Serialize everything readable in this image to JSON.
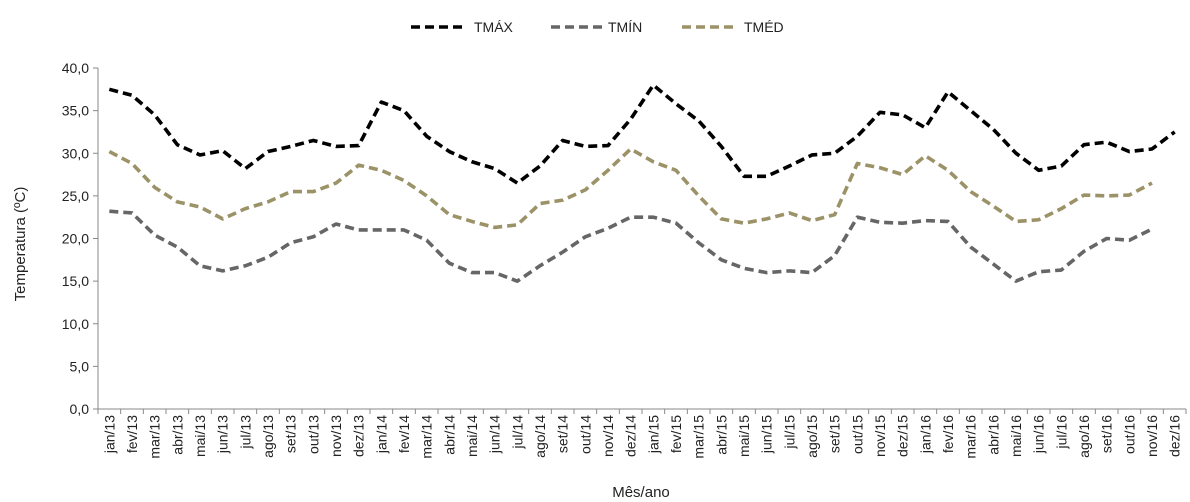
{
  "chart_data": {
    "type": "line",
    "xlabel": "Mês/ano",
    "ylabel": "Temperatura (ºC)",
    "ylim": [
      0,
      40
    ],
    "yticks": [
      "0,0",
      "5,0",
      "10,0",
      "15,0",
      "20,0",
      "25,0",
      "30,0",
      "35,0",
      "40,0"
    ],
    "grid": false,
    "legend_position": "top-center",
    "categories": [
      "jan/13",
      "fev/13",
      "mar/13",
      "abr/13",
      "mai/13",
      "jun/13",
      "jul/13",
      "ago/13",
      "set/13",
      "out/13",
      "nov/13",
      "dez/13",
      "jan/14",
      "fev/14",
      "mar/14",
      "abr/14",
      "mai/14",
      "jun/14",
      "jul/14",
      "ago/14",
      "set/14",
      "out/14",
      "nov/14",
      "dez/14",
      "jan/15",
      "fev/15",
      "mar/15",
      "abr/15",
      "mai/15",
      "jun/15",
      "jul/15",
      "ago/15",
      "set/15",
      "out/15",
      "nov/15",
      "dez/15",
      "jan/16",
      "fev/16",
      "mar/16",
      "abr/16",
      "mai/16",
      "jun/16",
      "jul/16",
      "ago/16",
      "set/16",
      "out/16",
      "nov/16",
      "dez/16"
    ],
    "series": [
      {
        "name": "TMÁX",
        "color": "#000000",
        "values": [
          37.5,
          36.8,
          34.5,
          31.0,
          29.8,
          30.3,
          28.2,
          30.2,
          30.8,
          31.5,
          30.8,
          30.9,
          36.0,
          35.0,
          32.0,
          30.2,
          29.0,
          28.2,
          26.5,
          28.5,
          31.5,
          30.8,
          30.9,
          34.0,
          38.0,
          35.8,
          33.8,
          30.8,
          27.3,
          27.3,
          28.5,
          29.8,
          30.0,
          32.0,
          34.8,
          34.5,
          33.0,
          37.2,
          35.0,
          32.8,
          30.0,
          28.0,
          28.5,
          31.0,
          31.3,
          30.2,
          30.5,
          32.5
        ]
      },
      {
        "name": "TMÍN",
        "color": "#666666",
        "values": [
          23.2,
          23.0,
          20.4,
          19.0,
          16.8,
          16.2,
          16.8,
          17.8,
          19.5,
          20.2,
          21.7,
          21.0,
          21.0,
          21.0,
          19.8,
          17.1,
          16.0,
          16.0,
          15.0,
          16.8,
          18.4,
          20.2,
          21.2,
          22.5,
          22.5,
          21.8,
          19.5,
          17.5,
          16.5,
          16.0,
          16.2,
          16.0,
          18.0,
          22.5,
          21.9,
          21.8,
          22.1,
          22.0,
          19.0,
          17.0,
          15.0,
          16.1,
          16.3,
          18.5,
          20.0,
          19.8,
          21.1,
          null
        ]
      },
      {
        "name": "TMÉD",
        "color": "#9c9267",
        "values": [
          30.2,
          28.8,
          26.0,
          24.3,
          23.7,
          22.3,
          23.5,
          24.3,
          25.5,
          25.5,
          26.5,
          28.6,
          28.0,
          26.8,
          25.0,
          22.8,
          22.0,
          21.3,
          21.6,
          24.1,
          24.5,
          25.7,
          28.0,
          30.5,
          29.0,
          28.0,
          25.0,
          22.3,
          21.8,
          22.3,
          23.0,
          22.1,
          22.8,
          28.8,
          28.3,
          27.5,
          29.7,
          28.0,
          25.5,
          23.8,
          22.0,
          22.2,
          23.5,
          25.1,
          25.0,
          25.1,
          26.5,
          null
        ]
      }
    ]
  }
}
